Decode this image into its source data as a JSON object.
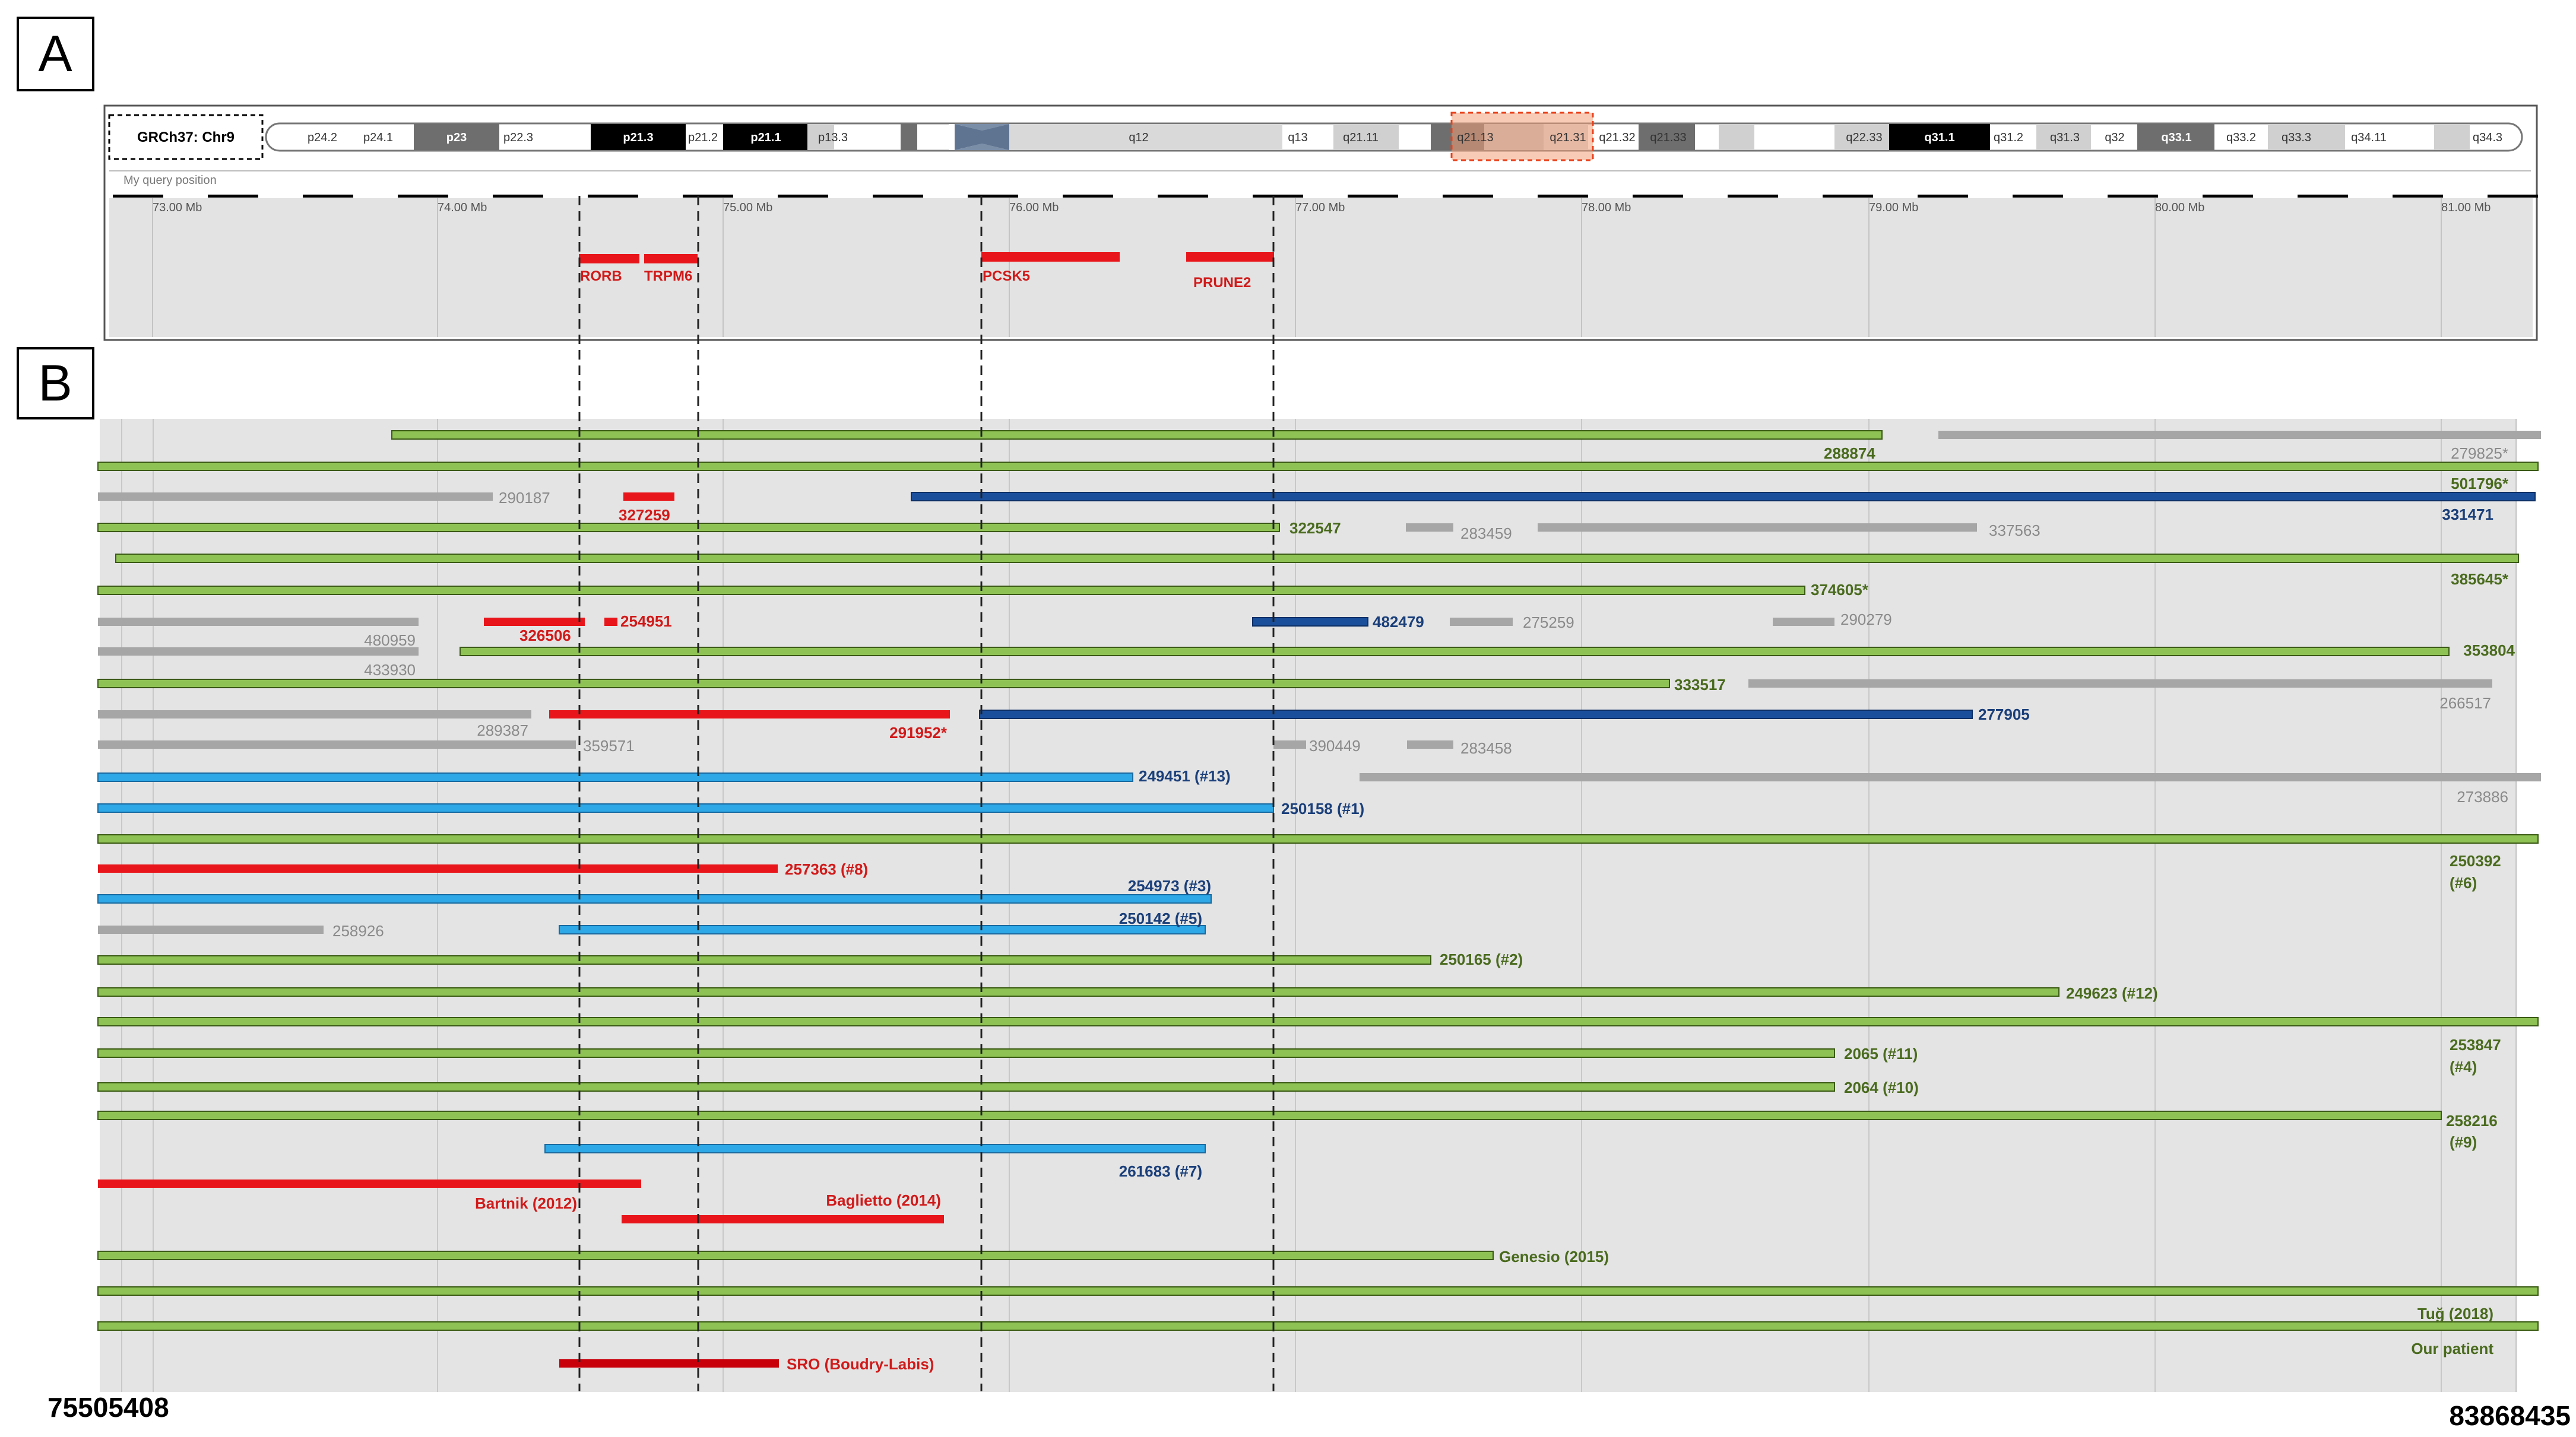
{
  "panel_labels": {
    "a": "A",
    "b": "B"
  },
  "ideogram": {
    "assembly_label": "GRCh37: Chr9",
    "band_labels": [
      "p24.2",
      "p24.1",
      "p23",
      "p22.3",
      "p21.3",
      "p21.2",
      "p21.1",
      "p13.3",
      "q12",
      "q13",
      "q21.11",
      "q21.13",
      "q21.31",
      "q21.32",
      "q21.33",
      "q22.33",
      "q31.1",
      "q31.2",
      "q31.3",
      "q32",
      "q33.1",
      "q33.2",
      "q33.3",
      "q34.11",
      "q34.3"
    ],
    "query_label": "My query position",
    "mb_ticks": [
      "73.00 Mb",
      "74.00 Mb",
      "75.00 Mb",
      "76.00 Mb",
      "77.00 Mb",
      "78.00 Mb",
      "79.00 Mb",
      "80.00 Mb",
      "81.00 Mb"
    ],
    "genes": [
      "RORB",
      "TRPM6",
      "PCSK5",
      "PRUNE2"
    ]
  },
  "coordinates": {
    "left": "75505408",
    "right": "83868435"
  },
  "track_labels": [
    "288874",
    "279825*",
    "501796*",
    "290187",
    "327259",
    "331471",
    "322547",
    "283459",
    "337563",
    "374605*",
    "385645*",
    "480959",
    "326506",
    "254951",
    "482479",
    "275259",
    "290279",
    "353804",
    "433930",
    "333517",
    "266517",
    "289387",
    "291952*",
    "277905",
    "359571",
    "390449",
    "283458",
    "249451 (#13)",
    "273886",
    "250158 (#1)",
    "250392",
    "(#6)",
    "257363 (#8)",
    "254973 (#3)",
    "258926",
    "250142 (#5)",
    "250165 (#2)",
    "249623 (#12)",
    "253847",
    "(#4)",
    "2065 (#11)",
    "2064 (#10)",
    "258216",
    "(#9)",
    "261683 (#7)",
    "Bartnik (2012)",
    "Baglietto (2014)",
    "Genesio (2015)",
    "Tuğ (2018)",
    "Our patient",
    "SRO (Boudry-Labis)"
  ],
  "colors": {
    "green": "#8fc255",
    "green_text": "#4a6b1e",
    "red": "#e8161a",
    "dark_red": "#c8000a",
    "red_text": "#d11a1a",
    "navy": "#1a4f9c",
    "navy_text": "#1a3f7a",
    "light_blue": "#2ea8e6",
    "grey": "#a6a6a6",
    "grey_text": "#8a8a8a",
    "panel_bg": "#e4e4e4"
  }
}
